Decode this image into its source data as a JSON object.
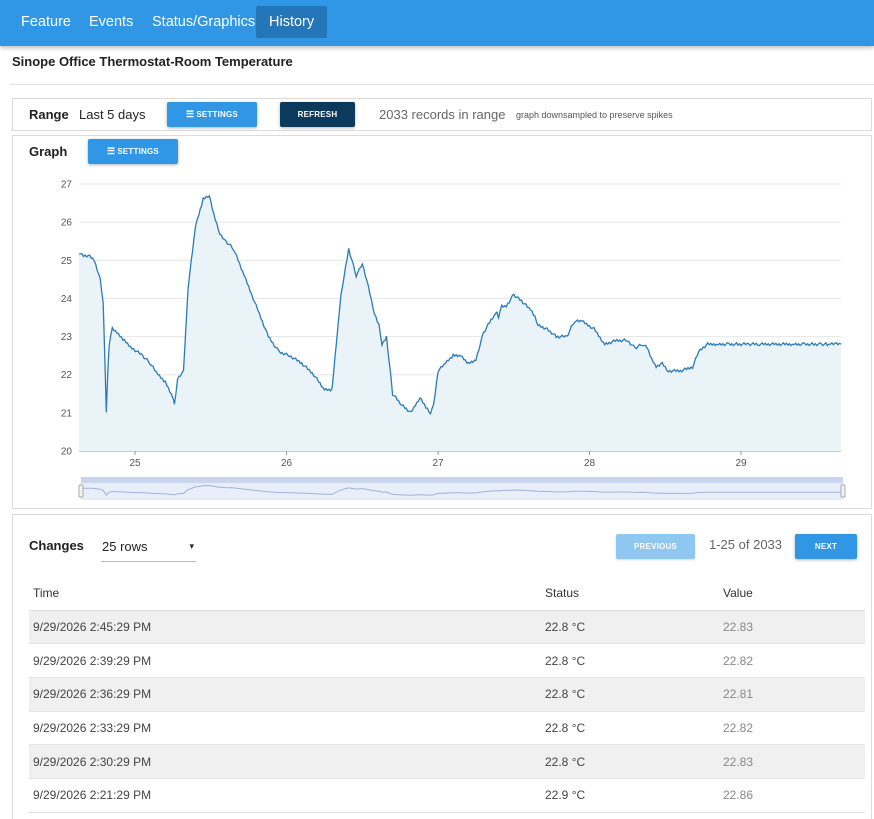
{
  "nav": {
    "tabs": [
      {
        "label": "Feature",
        "active": false
      },
      {
        "label": "Events",
        "active": false
      },
      {
        "label": "Status/Graphics",
        "active": false
      },
      {
        "label": "History",
        "active": true
      }
    ]
  },
  "page": {
    "title": "Sinope Office Thermostat-Room Temperature"
  },
  "range": {
    "label": "Range",
    "value": "Last 5 days",
    "settings_label": "SETTINGS",
    "refresh_label": "REFRESH",
    "records_text": "2033 records in range",
    "note": "graph downsampled to preserve spikes"
  },
  "graph": {
    "label": "Graph",
    "settings_label": "SETTINGS"
  },
  "chart_data": {
    "type": "area",
    "xlabel": "",
    "ylabel": "",
    "x_ticks": [
      "25",
      "26",
      "27",
      "28",
      "29"
    ],
    "y_ticks": [
      "20",
      "21",
      "22",
      "23",
      "24",
      "25",
      "26",
      "27"
    ],
    "xlim": [
      24.63,
      29.66
    ],
    "ylim": [
      20,
      27
    ],
    "grid": true,
    "colors": {
      "line": "#2b7bb8",
      "fill": "#eaf3f8"
    },
    "x": [
      24.63,
      24.66,
      24.7,
      24.73,
      24.77,
      24.79,
      24.81,
      24.82,
      24.83,
      24.85,
      24.88,
      24.93,
      24.98,
      25.05,
      25.1,
      25.15,
      25.2,
      25.25,
      25.26,
      25.28,
      25.32,
      25.35,
      25.4,
      25.45,
      25.49,
      25.52,
      25.56,
      25.6,
      25.65,
      25.72,
      25.8,
      25.88,
      25.95,
      26.02,
      26.1,
      26.18,
      26.25,
      26.3,
      26.34,
      26.36,
      26.38,
      26.41,
      26.46,
      26.5,
      26.54,
      26.58,
      26.61,
      26.63,
      26.66,
      26.7,
      26.76,
      26.82,
      26.88,
      26.93,
      26.95,
      26.97,
      27.0,
      27.05,
      27.1,
      27.15,
      27.2,
      27.25,
      27.3,
      27.36,
      27.38,
      27.39,
      27.4,
      27.42,
      27.45,
      27.5,
      27.56,
      27.61,
      27.64,
      27.66,
      27.72,
      27.78,
      27.85,
      27.9,
      27.95,
      28.03,
      28.1,
      28.18,
      28.25,
      28.3,
      28.35,
      28.38,
      28.41,
      28.44,
      28.48,
      28.52,
      28.6,
      28.68,
      28.72,
      28.78,
      28.85,
      28.92,
      28.98,
      29.05,
      29.12,
      29.2,
      29.28,
      29.35,
      29.42,
      29.48,
      29.53,
      29.57,
      29.59,
      29.63,
      29.66
    ],
    "values": [
      25.2,
      25.1,
      25.1,
      25.0,
      24.5,
      23.9,
      21.0,
      22.1,
      22.8,
      23.2,
      23.1,
      22.9,
      22.7,
      22.5,
      22.3,
      22.0,
      21.8,
      21.4,
      21.2,
      21.9,
      22.1,
      24.3,
      25.9,
      26.6,
      26.7,
      26.2,
      25.7,
      25.5,
      25.3,
      24.6,
      23.8,
      23.0,
      22.6,
      22.5,
      22.3,
      22.0,
      21.6,
      21.6,
      23.3,
      24.1,
      24.6,
      25.3,
      24.6,
      24.9,
      24.3,
      23.6,
      23.3,
      22.8,
      23.0,
      21.5,
      21.2,
      21.0,
      21.4,
      21.1,
      21.0,
      21.2,
      22.1,
      22.3,
      22.5,
      22.5,
      22.3,
      22.4,
      23.1,
      23.5,
      23.6,
      23.6,
      23.5,
      23.8,
      23.8,
      24.1,
      23.9,
      23.7,
      23.5,
      23.3,
      23.2,
      23.0,
      23.0,
      23.4,
      23.4,
      23.2,
      22.8,
      22.9,
      22.9,
      22.7,
      22.8,
      22.7,
      22.4,
      22.2,
      22.3,
      22.1,
      22.1,
      22.2,
      22.6,
      22.8,
      22.8,
      22.8,
      22.8,
      22.8,
      22.8,
      22.8,
      22.8,
      22.8,
      22.8,
      22.8,
      22.8,
      22.8,
      22.8,
      22.8,
      22.8
    ]
  },
  "changes": {
    "label": "Changes",
    "rows_selected": "25 rows",
    "caret": "▾",
    "previous_label": "PREVIOUS",
    "next_label": "NEXT",
    "pagination_text": "1-25 of 2033",
    "columns": [
      "Time",
      "Status",
      "Value"
    ],
    "rows": [
      {
        "time": "9/29/2026 2:45:29 PM",
        "status": "22.8 °C",
        "value": "22.83"
      },
      {
        "time": "9/29/2026 2:39:29 PM",
        "status": "22.8 °C",
        "value": "22.82"
      },
      {
        "time": "9/29/2026 2:36:29 PM",
        "status": "22.8 °C",
        "value": "22.81"
      },
      {
        "time": "9/29/2026 2:33:29 PM",
        "status": "22.8 °C",
        "value": "22.82"
      },
      {
        "time": "9/29/2026 2:30:29 PM",
        "status": "22.8 °C",
        "value": "22.83"
      },
      {
        "time": "9/29/2026 2:21:29 PM",
        "status": "22.9 °C",
        "value": "22.86"
      }
    ]
  }
}
